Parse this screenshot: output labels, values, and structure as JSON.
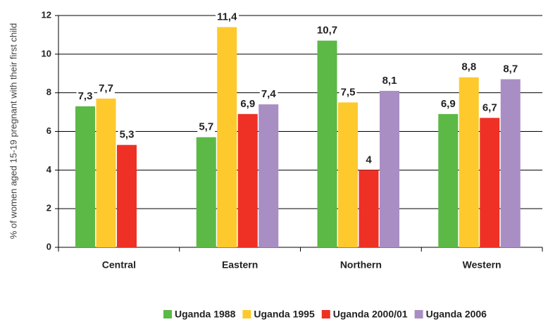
{
  "chart_data": {
    "type": "bar",
    "y_label": "% of women aged 15-19 pregnant with their first child",
    "categories": [
      "Central",
      "Eastern",
      "Northern",
      "Western"
    ],
    "series": [
      {
        "name": "Uganda 1988",
        "color": "#5cb946",
        "values": [
          7.3,
          5.7,
          10.7,
          6.9
        ],
        "value_labels": [
          "7,3",
          "5,7",
          "10,7",
          "6,9"
        ]
      },
      {
        "name": "Uganda 1995",
        "color": "#fec92d",
        "values": [
          7.7,
          11.4,
          7.5,
          8.8
        ],
        "value_labels": [
          "7,7",
          "11,4",
          "7,5",
          "8,8"
        ]
      },
      {
        "name": "Uganda 2000/01",
        "color": "#ee3124",
        "values": [
          5.3,
          6.9,
          4,
          6.7
        ],
        "value_labels": [
          "5,3",
          "6,9",
          "4",
          "6,7"
        ]
      },
      {
        "name": "Uganda 2006",
        "color": "#a98ec4",
        "values": [
          null,
          7.4,
          8.1,
          8.7
        ],
        "value_labels": [
          null,
          "7,4",
          "8,1",
          "8,7"
        ]
      }
    ],
    "ylim": [
      0,
      12
    ],
    "yticks": [
      0,
      2,
      4,
      6,
      8,
      10,
      12
    ],
    "grid": true,
    "legend": "bottom"
  }
}
